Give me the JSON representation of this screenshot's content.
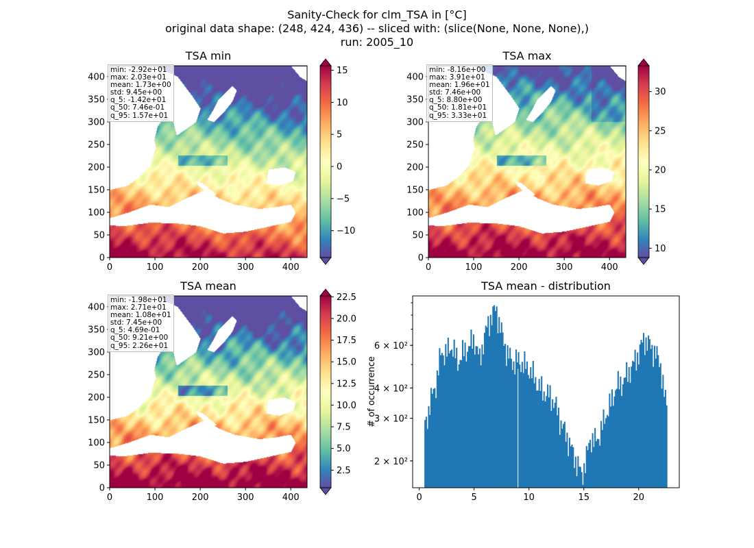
{
  "title_lines": [
    "Sanity-Check for clm_TSA in [°C]",
    "original data shape: (248, 424, 436) -- sliced with: (slice(None, None, None),)",
    "run: 2005_10"
  ],
  "map_axes": {
    "xticks": [
      0,
      100,
      200,
      300,
      400
    ],
    "yticks": [
      0,
      50,
      100,
      150,
      200,
      250,
      300,
      350,
      400
    ],
    "xlim": [
      0,
      436
    ],
    "ylim": [
      0,
      424
    ]
  },
  "colormap": "Spectral_r",
  "panels": [
    {
      "title": "TSA min",
      "stats": [
        "min: -2.92e+01",
        "max: 2.03e+01",
        "mean: 1.73e+00",
        "std: 9.45e+00",
        "q_5: -1.42e+01",
        "q_50: 7.46e-01",
        "q_95: 1.57e+01"
      ],
      "colorbar": {
        "vmin": -14.2,
        "vmax": 15.7,
        "ticks": [
          "15",
          "10",
          "5",
          "0",
          "−5",
          "−10"
        ],
        "tick_values": [
          15,
          10,
          5,
          0,
          -5,
          -10
        ]
      }
    },
    {
      "title": "TSA max",
      "stats": [
        "min: -8.16e+00",
        "max: 3.91e+01",
        "mean: 1.96e+01",
        "std: 7.46e+00",
        "q_5: 8.80e+00",
        "q_50: 1.81e+01",
        "q_95: 3.33e+01"
      ],
      "colorbar": {
        "vmin": 8.8,
        "vmax": 33.3,
        "ticks": [
          "30",
          "25",
          "20",
          "15",
          "10"
        ],
        "tick_values": [
          30,
          25,
          20,
          15,
          10
        ]
      }
    },
    {
      "title": "TSA mean",
      "stats": [
        "min: -1.98e+01",
        "max: 2.71e+01",
        "mean: 1.08e+01",
        "std: 7.45e+00",
        "q_5: 4.69e-01",
        "q_50: 9.21e+00",
        "q_95: 2.26e+01"
      ],
      "colorbar": {
        "vmin": 0.469,
        "vmax": 22.6,
        "ticks": [
          "22.5",
          "20.0",
          "17.5",
          "15.0",
          "12.5",
          "10.0",
          "7.5",
          "5.0",
          "2.5"
        ],
        "tick_values": [
          22.5,
          20.0,
          17.5,
          15.0,
          12.5,
          10.0,
          7.5,
          5.0,
          2.5
        ]
      }
    }
  ],
  "chart_data": {
    "type": "bar",
    "title": "TSA mean - distribution",
    "xlabel": "",
    "ylabel": "# of occurrence",
    "yscale": "log",
    "xlim": [
      -0.6,
      23.7
    ],
    "ylim": [
      155,
      960
    ],
    "xticks": [
      0,
      5,
      10,
      15,
      20
    ],
    "ytick_labels": [
      "6 × 10²",
      "4 × 10²",
      "3 × 10²",
      "2 × 10²"
    ],
    "ytick_values": [
      600,
      400,
      300,
      200
    ],
    "color": "#1f77b4",
    "bins": {
      "x_start": 0.469,
      "x_end": 22.6,
      "count": 200,
      "profile_x": [
        0.47,
        0.7,
        1.0,
        1.5,
        2.0,
        2.5,
        3.0,
        3.5,
        4.0,
        4.5,
        5.0,
        5.5,
        6.0,
        6.5,
        7.0,
        7.3,
        7.6,
        8.0,
        8.5,
        9.0,
        9.5,
        10.0,
        10.5,
        11.0,
        11.5,
        12.0,
        12.5,
        13.0,
        13.5,
        14.0,
        14.5,
        14.8,
        15.2,
        15.6,
        16.0,
        16.5,
        17.0,
        17.5,
        18.0,
        18.5,
        19.0,
        19.5,
        20.0,
        20.5,
        21.0,
        21.5,
        22.0,
        22.3,
        22.6
      ],
      "profile_y": [
        275,
        300,
        350,
        410,
        560,
        560,
        600,
        510,
        560,
        590,
        640,
        520,
        670,
        780,
        850,
        740,
        650,
        560,
        510,
        520,
        500,
        480,
        440,
        400,
        380,
        370,
        330,
        280,
        250,
        215,
        190,
        175,
        200,
        250,
        240,
        260,
        310,
        350,
        410,
        420,
        460,
        500,
        560,
        640,
        600,
        560,
        500,
        380,
        330
      ]
    }
  }
}
